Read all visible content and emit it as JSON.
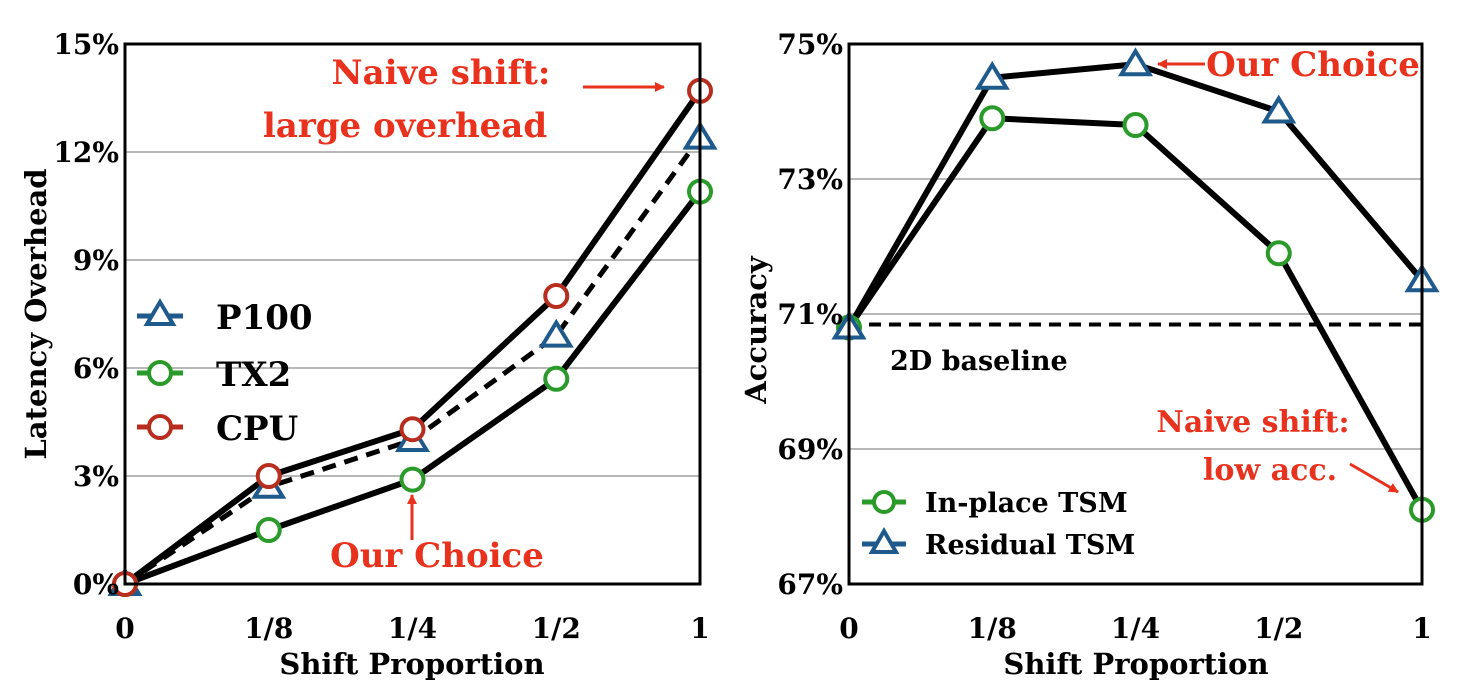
{
  "chart_data": [
    {
      "type": "line",
      "categories": [
        "0",
        "1/8",
        "1/4",
        "1/2",
        "1"
      ],
      "xlabel": "Shift Proportion",
      "ylabel": "Latency Overhead",
      "ylim": [
        0,
        15
      ],
      "yticks": [
        0,
        3,
        6,
        9,
        12,
        15
      ],
      "ytick_labels": [
        "0%",
        "3%",
        "6%",
        "9%",
        "12%",
        "15%"
      ],
      "grid": true,
      "legend_position": "left-middle",
      "series": [
        {
          "name": "P100",
          "values": [
            0,
            2.7,
            4.0,
            6.9,
            12.4
          ],
          "color": "#1f5a8c",
          "marker": "triangle",
          "line": "dashed"
        },
        {
          "name": "TX2",
          "values": [
            0,
            1.5,
            2.9,
            5.7,
            10.9
          ],
          "color": "#2a9a2a",
          "marker": "circle",
          "line": "solid"
        },
        {
          "name": "CPU",
          "values": [
            0,
            3.0,
            4.3,
            8.0,
            13.7
          ],
          "color": "#b82e1e",
          "marker": "circle",
          "line": "solid"
        }
      ],
      "annotations": [
        {
          "lines": [
            "Naive shift:",
            "large overhead"
          ],
          "target": {
            "x": "1",
            "y": 13.7
          }
        },
        {
          "lines": [
            "Our Choice"
          ],
          "target": {
            "x": "1/4",
            "y": 2.9
          }
        }
      ]
    },
    {
      "type": "line",
      "categories": [
        "0",
        "1/8",
        "1/4",
        "1/2",
        "1"
      ],
      "xlabel": "Shift Proportion",
      "ylabel": "Accuracy",
      "ylim": [
        67,
        75
      ],
      "yticks": [
        67,
        69,
        71,
        73,
        75
      ],
      "ytick_labels": [
        "67%",
        "69%",
        "71%",
        "73%",
        "75%"
      ],
      "grid": true,
      "legend_position": "bottom-left",
      "series": [
        {
          "name": "In-place TSM",
          "values": [
            70.8,
            73.9,
            73.8,
            71.9,
            68.1
          ],
          "color": "#2a9a2a",
          "marker": "circle",
          "line": "solid"
        },
        {
          "name": "Residual TSM",
          "values": [
            70.8,
            74.5,
            74.7,
            74.0,
            71.5
          ],
          "color": "#1f5a8c",
          "marker": "triangle",
          "line": "solid"
        }
      ],
      "baseline": {
        "label": "2D baseline",
        "value": 70.8
      },
      "annotations": [
        {
          "lines": [
            "Our Choice"
          ],
          "target": {
            "x": "1/4",
            "y": 74.7
          }
        },
        {
          "lines": [
            "Naive shift:",
            "low acc."
          ],
          "target": {
            "x": "1",
            "y": 68.1
          }
        }
      ]
    }
  ]
}
